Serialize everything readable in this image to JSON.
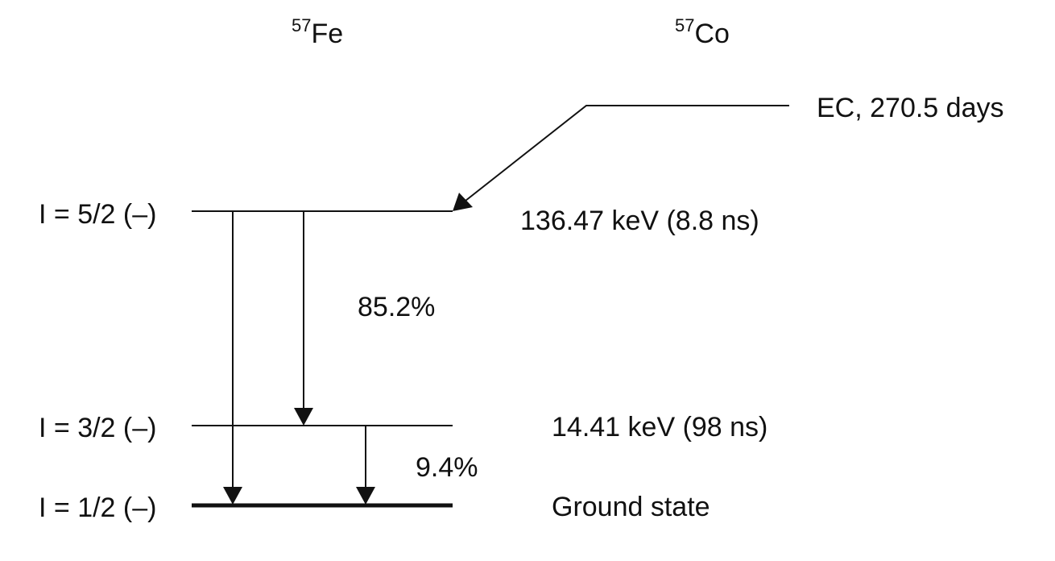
{
  "isotopes": {
    "fe": {
      "mass": "57",
      "symbol": "Fe"
    },
    "co": {
      "mass": "57",
      "symbol": "Co"
    }
  },
  "levels": [
    {
      "spin": "I = 5/2 (–)",
      "label": "136.47 keV (8.8 ns)"
    },
    {
      "spin": "I = 3/2 (–)",
      "label": "14.41 keV (98 ns)"
    },
    {
      "spin": "I = 1/2 (–)",
      "label": "Ground state"
    }
  ],
  "decay": {
    "label": "EC, 270.5 days"
  },
  "transitions": [
    {
      "from": "I = 5/2 (–)",
      "to": "I = 3/2 (–)",
      "label": "85.2%"
    },
    {
      "from": "I = 3/2 (–)",
      "to": "I = 1/2 (–)",
      "label": "9.4%"
    },
    {
      "from": "I = 5/2 (–)",
      "to": "I = 1/2 (–)",
      "label": ""
    }
  ]
}
